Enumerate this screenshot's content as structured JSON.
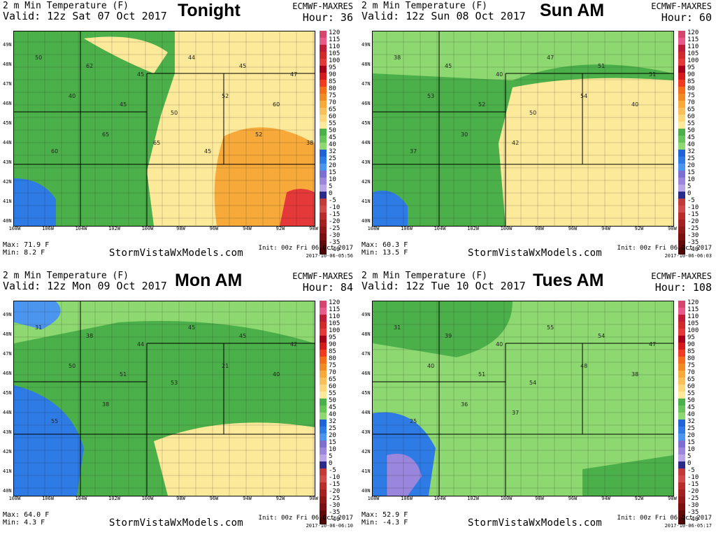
{
  "colorbar": {
    "labels": [
      "120",
      "115",
      "110",
      "105",
      "100",
      "95",
      "90",
      "85",
      "80",
      "75",
      "70",
      "65",
      "60",
      "55",
      "50",
      "45",
      "40",
      "32",
      "25",
      "20",
      "15",
      "10",
      "5",
      "0",
      "-5",
      "-10",
      "-15",
      "-20",
      "-25",
      "-30",
      "-35",
      "-40"
    ],
    "colors": [
      "#d6456e",
      "#e85a8a",
      "#c01c38",
      "#d12a2a",
      "#e53838",
      "#a80018",
      "#d41a1a",
      "#f03b20",
      "#f46d1a",
      "#f08a24",
      "#f7a93a",
      "#f9c05a",
      "#fbd77a",
      "#fde99a",
      "#4cb04a",
      "#67c45a",
      "#8ed871",
      "#1e63d8",
      "#2e7be6",
      "#4c95ee",
      "#7d6fd1",
      "#9b86dd",
      "#b9a4e8",
      "#2a2a8a",
      "#c23a3a",
      "#d14a4a",
      "#b82c2c",
      "#a52020",
      "#901818",
      "#7a1010",
      "#600a0a",
      "#4a0505"
    ]
  },
  "lat_labels": [
    "49N",
    "48N",
    "47N",
    "46N",
    "45N",
    "44N",
    "43N",
    "42N",
    "41N",
    "40N"
  ],
  "lon_labels": [
    "108W",
    "106W",
    "104W",
    "102W",
    "100W",
    "98W",
    "96W",
    "94W",
    "92W",
    "90W"
  ],
  "brand": "StormVistaWxModels.com",
  "panels": [
    {
      "title": "2 m Min Temperature (F)",
      "valid": "Valid: 12z Sat 07 Oct 2017",
      "model": "ECMWF-MAXRES",
      "hour": "Hour: 36",
      "overlay": "Tonight",
      "max": "Max: 71.9 F",
      "min": "Min: 8.2 F",
      "init": "Init: 00z Fri 06 Oct 2017",
      "stamp": "2017-10-06-05:56",
      "dominant": "mixed",
      "station_values": [
        "50",
        "62",
        "45",
        "44",
        "45",
        "47",
        "40",
        "45",
        "50",
        "52",
        "60",
        "60",
        "65",
        "65",
        "45",
        "52",
        "38"
      ]
    },
    {
      "title": "2 m Min Temperature (F)",
      "valid": "Valid: 12z Sun 08 Oct 2017",
      "model": "ECMWF-MAXRES",
      "hour": "Hour: 60",
      "overlay": "Sun AM",
      "max": "Max: 60.3 F",
      "min": "Min: 13.5 F",
      "init": "Init: 00z Fri 06 Oct 2017",
      "stamp": "2017-10-06-06:03",
      "dominant": "green-yellow",
      "station_values": [
        "38",
        "45",
        "40",
        "47",
        "51",
        "51",
        "53",
        "52",
        "50",
        "54",
        "40",
        "37",
        "30",
        "42"
      ]
    },
    {
      "title": "2 m Min Temperature (F)",
      "valid": "Valid: 12z Mon 09 Oct 2017",
      "model": "ECMWF-MAXRES",
      "hour": "Hour: 84",
      "overlay": "Mon AM",
      "max": "Max: 64.0 F",
      "min": "Min: 4.3 F",
      "init": "Init: 00z Fri 06 Oct 2017",
      "stamp": "2017-10-06-06:10",
      "dominant": "green",
      "station_values": [
        "31",
        "38",
        "44",
        "45",
        "45",
        "42",
        "50",
        "51",
        "53",
        "21",
        "40",
        "55",
        "38"
      ]
    },
    {
      "title": "2 m Min Temperature (F)",
      "valid": "Valid: 12z Tue 10 Oct 2017",
      "model": "ECMWF-MAXRES",
      "hour": "Hour: 108",
      "overlay": "Tues AM",
      "max": "Max: 52.9 F",
      "min": "Min: -4.3 F",
      "init": "Init: 00z Fri 06 Oct 2017",
      "stamp": "2017-10-06-05:17",
      "dominant": "light-green",
      "station_values": [
        "31",
        "39",
        "40",
        "55",
        "54",
        "47",
        "40",
        "51",
        "54",
        "48",
        "38",
        "25",
        "36",
        "37"
      ]
    }
  ]
}
